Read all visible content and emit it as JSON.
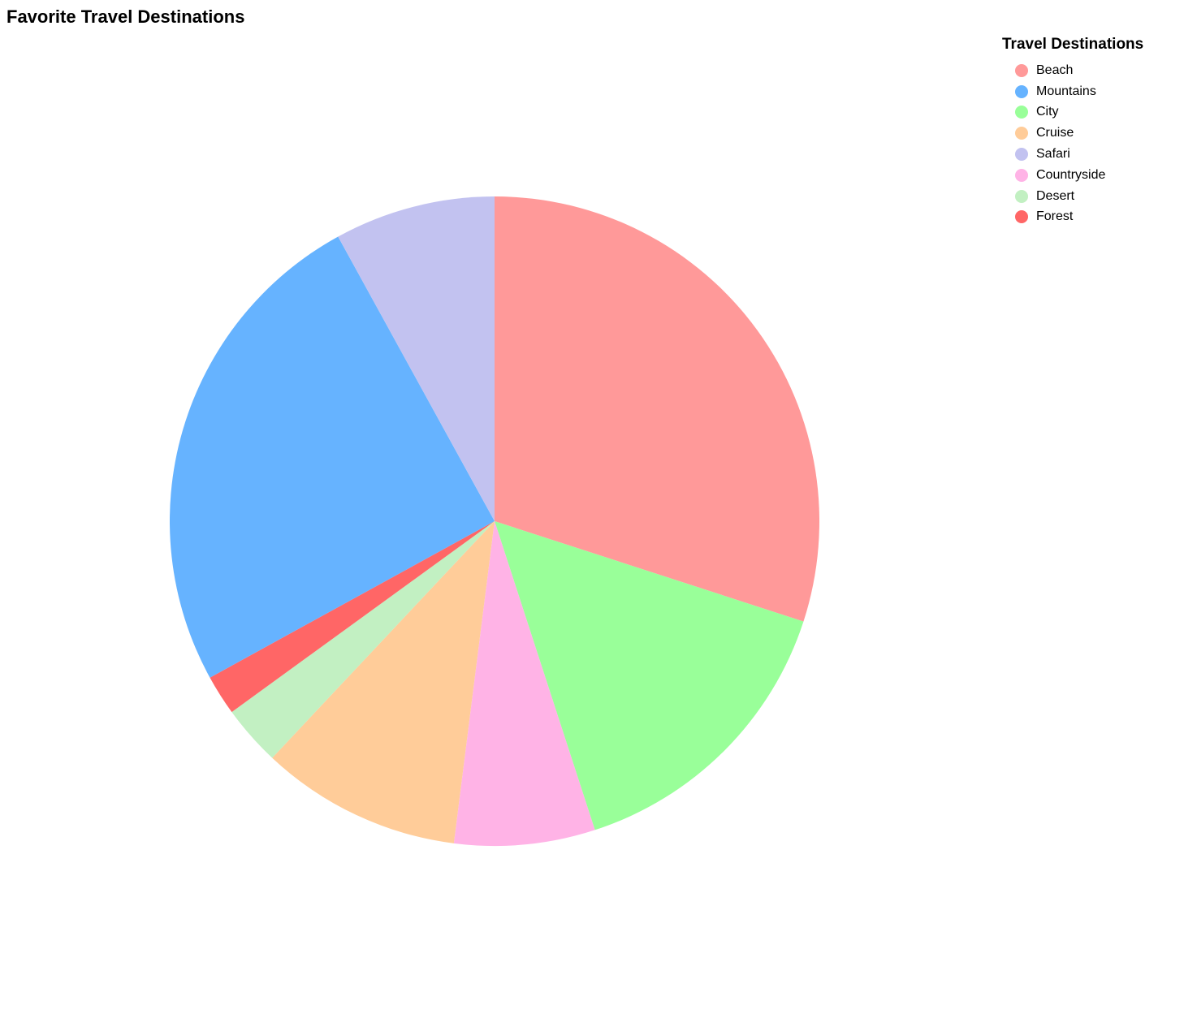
{
  "chart_data": {
    "type": "pie",
    "title": "Favorite Travel Destinations",
    "legend_title": "Travel Destinations",
    "legend_position": "top-right",
    "categories": [
      "Beach",
      "City",
      "Countryside",
      "Cruise",
      "Desert",
      "Forest",
      "Mountains",
      "Safari"
    ],
    "values": [
      30,
      15,
      7,
      10,
      3,
      2,
      25,
      8
    ],
    "colors": [
      "#ff9999",
      "#99ff99",
      "#ffb3e6",
      "#ffcc99",
      "#c2f0c2",
      "#ff6666",
      "#66b3ff",
      "#c2c2f0"
    ],
    "legend_order": [
      "Beach",
      "Mountains",
      "City",
      "Cruise",
      "Safari",
      "Countryside",
      "Desert",
      "Forest"
    ]
  }
}
